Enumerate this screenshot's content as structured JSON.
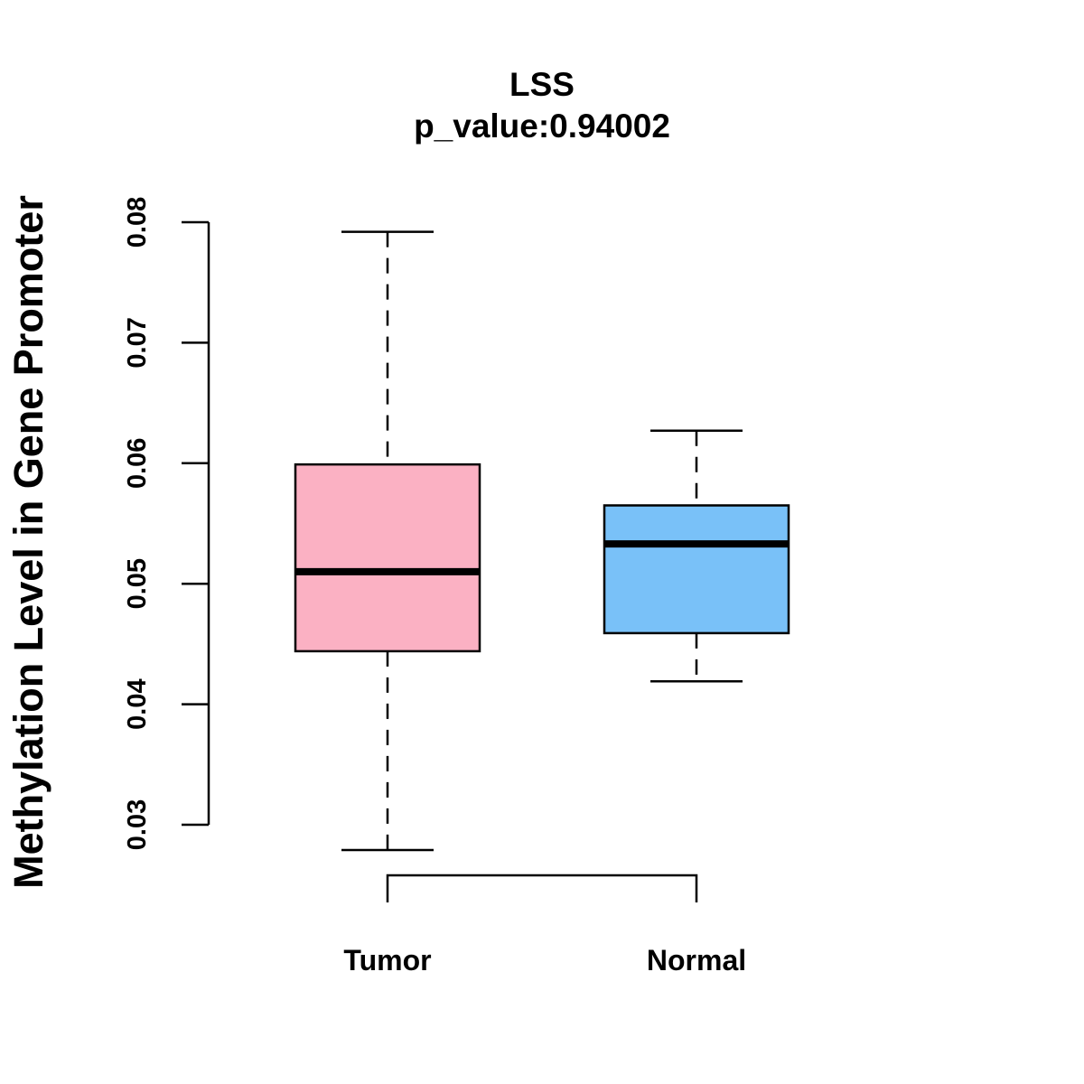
{
  "chart_data": {
    "type": "boxplot",
    "title": "LSS",
    "subtitle": "p_value:0.94002",
    "xlabel": "",
    "ylabel": "Methylation Level in Gene Promoter",
    "ylim": [
      0.03,
      0.08
    ],
    "yticks": [
      0.03,
      0.04,
      0.05,
      0.06,
      0.07,
      0.08
    ],
    "ytick_labels": [
      "0.03",
      "0.04",
      "0.05",
      "0.06",
      "0.07",
      "0.08"
    ],
    "categories": [
      "Tumor",
      "Normal"
    ],
    "boxes": [
      {
        "name": "Tumor",
        "whisker_low": 0.0279,
        "q1": 0.0444,
        "median": 0.051,
        "q3": 0.0599,
        "whisker_high": 0.0792,
        "color": "#FBB1C3"
      },
      {
        "name": "Normal",
        "whisker_low": 0.0419,
        "q1": 0.0459,
        "median": 0.0533,
        "q3": 0.0565,
        "whisker_high": 0.0627,
        "color": "#79C1F8"
      }
    ],
    "bracket": {
      "between": [
        "Tumor",
        "Normal"
      ]
    }
  }
}
